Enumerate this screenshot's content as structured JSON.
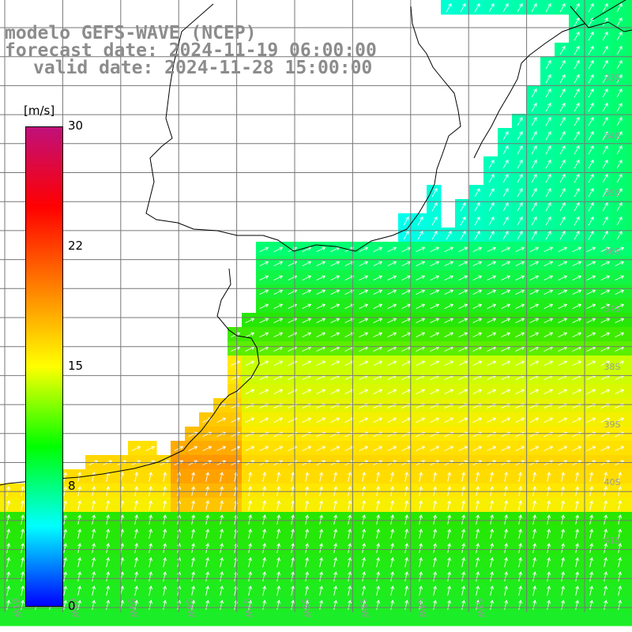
{
  "title": {
    "model": "modelo GEFS-WAVE (NCEP)",
    "forecast": "forecast date: 2024-11-19 06:00:00",
    "valid": "valid date: 2024-11-28 15:00:00"
  },
  "colorbar": {
    "unit": "[m/s]",
    "ticks": [
      "30",
      "22",
      "15",
      "8",
      "0"
    ],
    "values": [
      30,
      22,
      15,
      8,
      0
    ],
    "colors": [
      "#c0107a",
      "#ff0000",
      "#ff7f00",
      "#ffff00",
      "#00ff00",
      "#00ffff",
      "#0000ff"
    ]
  },
  "lat_labels": [
    "33S",
    "34S",
    "35S",
    "36S",
    "37S",
    "38S",
    "39S",
    "40S",
    "41S"
  ],
  "lon_labels": [
    "61W",
    "60W",
    "59W",
    "58W",
    "57W",
    "56W",
    "55W",
    "54W",
    "53W"
  ],
  "wind_direction": "toward northeast",
  "colors": {
    "land": "#ffffff",
    "grid": "#777777",
    "coast": "#000000",
    "arrows": "#ffffff"
  }
}
